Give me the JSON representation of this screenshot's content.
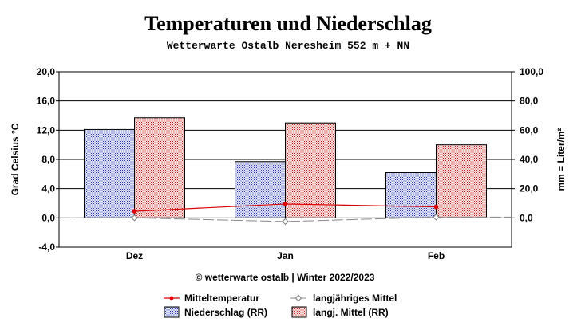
{
  "chart_data": {
    "type": "bar",
    "title": "Temperaturen und Niederschlag",
    "subtitle": "Wetterwarte Ostalb Neresheim 552 m + NN",
    "credit": "© wetterwarte ostalb | Winter 2022/2023",
    "categories": [
      "Dez",
      "Jan",
      "Feb"
    ],
    "y_left": {
      "label": "Grad Celsius °C",
      "range": [
        -4,
        20
      ],
      "ticks": [
        "-4,0",
        "0,0",
        "4,0",
        "8,0",
        "12,0",
        "16,0",
        "20,0"
      ]
    },
    "y_right": {
      "label": "mm = Liter/m²",
      "range": [
        -20,
        100
      ],
      "ticks": [
        "0,0",
        "20,0",
        "40,0",
        "60,0",
        "80,0",
        "100,0"
      ]
    },
    "series": [
      {
        "name": "Niederschlag (RR)",
        "kind": "bar",
        "axis": "right",
        "color": "#3344aa",
        "values": [
          60.5,
          38.5,
          31.0
        ]
      },
      {
        "name": "langj. Mittel (RR)",
        "kind": "bar",
        "axis": "right",
        "color": "#cc2222",
        "values": [
          68.5,
          65.0,
          50.0
        ]
      },
      {
        "name": "Mitteltemperatur",
        "kind": "line",
        "axis": "left",
        "color": "#dd0000",
        "values": [
          0.9,
          1.9,
          1.5
        ]
      },
      {
        "name": "langjähriges Mittel",
        "kind": "line",
        "axis": "left",
        "color": "#888888",
        "values": [
          0.0,
          -0.5,
          0.1
        ]
      }
    ],
    "grid": true,
    "legend_position": "bottom"
  }
}
